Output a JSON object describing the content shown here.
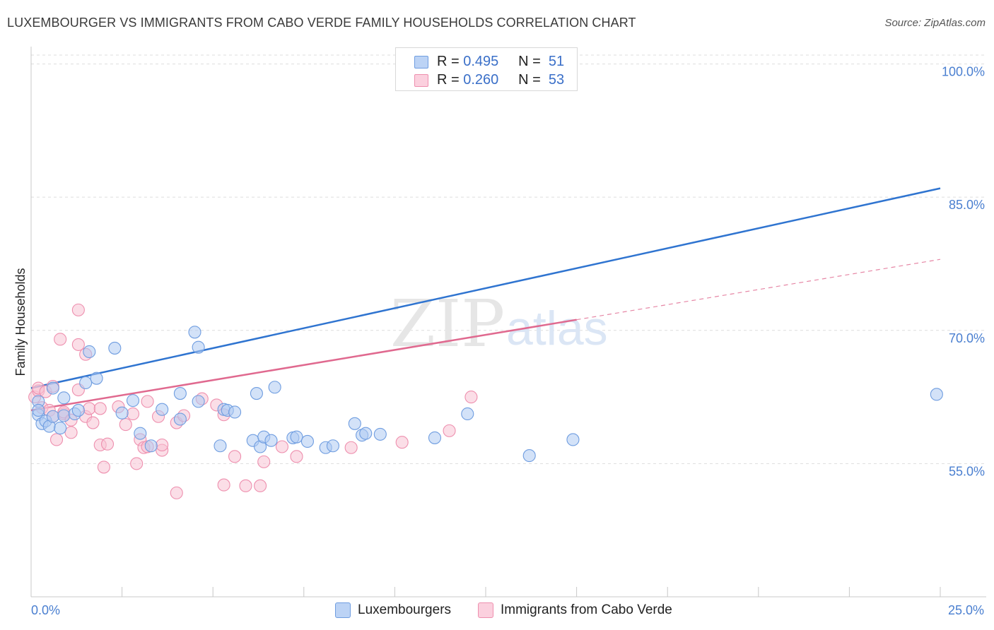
{
  "title": "LUXEMBOURGER VS IMMIGRANTS FROM CABO VERDE FAMILY HOUSEHOLDS CORRELATION CHART",
  "source": "Source: ZipAtlas.com",
  "watermark": {
    "zip": "ZIP",
    "atlas": "atlas"
  },
  "legend_top": {
    "rows": [
      {
        "r_label": "R = ",
        "r_value": "0.495",
        "n_label": "N = ",
        "n_value": "51"
      },
      {
        "r_label": "R = ",
        "r_value": "0.260",
        "n_label": "N = ",
        "n_value": "53"
      }
    ]
  },
  "legend_bottom": {
    "items": [
      {
        "label": "Luxembourgers"
      },
      {
        "label": "Immigrants from Cabo Verde"
      }
    ]
  },
  "colors": {
    "blue_fill": "#aecbf2",
    "blue_stroke": "#6f9de0",
    "blue_line": "#2f74d0",
    "pink_fill": "#f8c3d4",
    "pink_stroke": "#ee8fae",
    "pink_line": "#e0698f",
    "grid": "#dddddd",
    "tick_label": "#4a7fd0"
  },
  "chart_data": {
    "type": "scatter",
    "title": "LUXEMBOURGER VS IMMIGRANTS FROM CABO VERDE FAMILY HOUSEHOLDS CORRELATION CHART",
    "xlabel": "",
    "ylabel": "Family Households",
    "xlim": [
      0,
      25
    ],
    "ylim": [
      40,
      101
    ],
    "x_tick_labels": [
      "0.0%",
      "25.0%"
    ],
    "y_ticks": [
      55,
      70,
      85,
      100
    ],
    "y_tick_labels": [
      "55.0%",
      "70.0%",
      "85.0%",
      "100.0%"
    ],
    "grid": true,
    "legend": "bottom",
    "series": [
      {
        "name": "Luxembourgers",
        "color": "#6f9de0",
        "r": 0.495,
        "n": 51,
        "trend": {
          "x": [
            0,
            25
          ],
          "y": [
            63.5,
            86.0
          ],
          "style": "solid"
        },
        "points": [
          [
            0.2,
            62.0
          ],
          [
            0.2,
            60.5
          ],
          [
            0.2,
            61.0
          ],
          [
            0.3,
            59.5
          ],
          [
            0.4,
            59.8
          ],
          [
            0.5,
            59.2
          ],
          [
            0.6,
            60.3
          ],
          [
            0.6,
            63.5
          ],
          [
            0.8,
            59.0
          ],
          [
            0.9,
            60.4
          ],
          [
            0.9,
            62.4
          ],
          [
            1.2,
            60.6
          ],
          [
            1.3,
            61.0
          ],
          [
            1.5,
            64.1
          ],
          [
            1.6,
            67.6
          ],
          [
            1.8,
            64.6
          ],
          [
            2.3,
            68.0
          ],
          [
            2.5,
            60.7
          ],
          [
            2.8,
            62.1
          ],
          [
            3.0,
            58.4
          ],
          [
            3.3,
            57.0
          ],
          [
            3.6,
            61.1
          ],
          [
            4.1,
            60.0
          ],
          [
            4.1,
            62.9
          ],
          [
            4.5,
            69.8
          ],
          [
            4.6,
            62.0
          ],
          [
            4.6,
            68.1
          ],
          [
            5.2,
            57.0
          ],
          [
            5.3,
            61.1
          ],
          [
            5.4,
            61.0
          ],
          [
            5.6,
            60.8
          ],
          [
            6.1,
            57.6
          ],
          [
            6.2,
            62.9
          ],
          [
            6.3,
            56.9
          ],
          [
            6.4,
            58.0
          ],
          [
            6.6,
            57.6
          ],
          [
            6.7,
            63.6
          ],
          [
            7.2,
            57.9
          ],
          [
            7.3,
            58.0
          ],
          [
            7.6,
            57.5
          ],
          [
            8.1,
            56.8
          ],
          [
            8.3,
            57.0
          ],
          [
            8.9,
            59.5
          ],
          [
            9.1,
            58.2
          ],
          [
            9.2,
            58.4
          ],
          [
            9.6,
            58.3
          ],
          [
            11.1,
            57.9
          ],
          [
            12.0,
            60.6
          ],
          [
            13.7,
            55.9
          ],
          [
            14.9,
            57.7
          ],
          [
            24.9,
            62.8
          ]
        ]
      },
      {
        "name": "Immigrants from Cabo Verde",
        "color": "#ee8fae",
        "r": 0.26,
        "n": 53,
        "trend": {
          "x": [
            0,
            15
          ],
          "y": [
            61.0,
            71.2
          ],
          "style": "solid",
          "dashed_extension": {
            "x": [
              15,
              25
            ],
            "y": [
              71.2,
              78.0
            ]
          }
        },
        "points": [
          [
            0.1,
            62.5
          ],
          [
            0.2,
            63.2
          ],
          [
            0.2,
            63.5
          ],
          [
            0.3,
            61.3
          ],
          [
            0.4,
            63.1
          ],
          [
            0.5,
            61.0
          ],
          [
            0.6,
            60.3
          ],
          [
            0.6,
            63.7
          ],
          [
            0.7,
            57.7
          ],
          [
            0.8,
            69.0
          ],
          [
            0.9,
            60.6
          ],
          [
            0.9,
            60.8
          ],
          [
            1.1,
            58.5
          ],
          [
            1.1,
            59.9
          ],
          [
            1.3,
            63.3
          ],
          [
            1.3,
            68.4
          ],
          [
            1.3,
            72.3
          ],
          [
            1.5,
            60.3
          ],
          [
            1.5,
            67.3
          ],
          [
            1.6,
            61.2
          ],
          [
            1.7,
            59.6
          ],
          [
            1.9,
            57.1
          ],
          [
            1.9,
            61.2
          ],
          [
            2.0,
            54.6
          ],
          [
            2.1,
            57.2
          ],
          [
            2.4,
            61.4
          ],
          [
            2.6,
            59.4
          ],
          [
            2.8,
            60.6
          ],
          [
            2.9,
            55.0
          ],
          [
            3.0,
            57.7
          ],
          [
            3.1,
            56.8
          ],
          [
            3.2,
            56.9
          ],
          [
            3.2,
            62.0
          ],
          [
            3.5,
            60.3
          ],
          [
            3.6,
            56.5
          ],
          [
            3.6,
            57.1
          ],
          [
            4.0,
            51.7
          ],
          [
            4.0,
            59.6
          ],
          [
            4.2,
            60.4
          ],
          [
            4.7,
            62.3
          ],
          [
            5.1,
            61.6
          ],
          [
            5.3,
            60.5
          ],
          [
            5.3,
            52.6
          ],
          [
            5.6,
            55.8
          ],
          [
            5.9,
            52.5
          ],
          [
            6.3,
            52.5
          ],
          [
            6.4,
            55.2
          ],
          [
            6.9,
            56.9
          ],
          [
            7.3,
            55.8
          ],
          [
            8.8,
            56.8
          ],
          [
            10.2,
            57.4
          ],
          [
            11.5,
            58.7
          ],
          [
            12.1,
            62.5
          ]
        ]
      }
    ]
  }
}
